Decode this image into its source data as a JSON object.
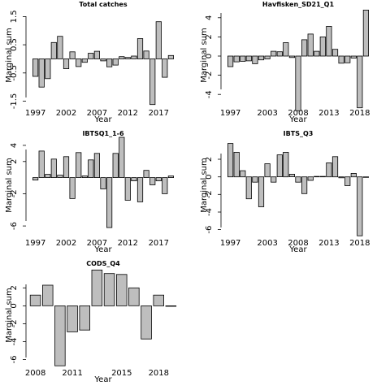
{
  "figure": {
    "background": "#ffffff",
    "bar_fill": "#bebebe",
    "bar_stroke": "#000000"
  },
  "chart_data": [
    {
      "type": "bar",
      "title": "Total catches",
      "xlabel": "Year",
      "ylabel": "Marginal sum",
      "ylim": [
        -1.6,
        1.8
      ],
      "yticks": [
        -1.5,
        -0.5,
        0.5,
        1.5
      ],
      "ytick_labels": [
        "-1.5",
        "-0.5",
        "0.5",
        "1.5"
      ],
      "xlim": [
        1996,
        2020
      ],
      "xticks": [
        1997,
        2002,
        2007,
        2012,
        2017
      ],
      "x": [
        1997,
        1998,
        1999,
        2000,
        2001,
        2002,
        2003,
        2004,
        2005,
        2006,
        2007,
        2008,
        2009,
        2010,
        2011,
        2012,
        2013,
        2014,
        2015,
        2016,
        2017,
        2018,
        2019
      ],
      "values": [
        -0.62,
        -1.0,
        -0.7,
        0.58,
        0.8,
        -0.35,
        0.25,
        -0.27,
        -0.12,
        0.2,
        0.27,
        -0.07,
        -0.28,
        -0.22,
        0.08,
        0.05,
        0.1,
        0.72,
        0.28,
        -1.62,
        1.32,
        -0.65,
        0.12
      ]
    },
    {
      "type": "bar",
      "title": "Havfisken_SD21_Q1",
      "xlabel": "Year",
      "ylabel": "Marginal sum",
      "ylim": [
        -5,
        5
      ],
      "yticks": [
        -4,
        -2,
        0,
        2,
        4
      ],
      "ytick_labels": [
        "-4",
        "-2",
        "0",
        "2",
        "4"
      ],
      "xlim": [
        1996,
        2020
      ],
      "xticks": [
        1997,
        2003,
        2008,
        2013,
        2018
      ],
      "x": [
        1997,
        1998,
        1999,
        2000,
        2001,
        2002,
        2003,
        2004,
        2005,
        2006,
        2007,
        2008,
        2009,
        2010,
        2011,
        2012,
        2013,
        2014,
        2015,
        2016,
        2017,
        2018,
        2019
      ],
      "values": [
        -1.1,
        -0.6,
        -0.55,
        -0.5,
        -0.8,
        -0.4,
        -0.3,
        0.5,
        0.45,
        1.4,
        -0.15,
        -5.7,
        1.7,
        2.3,
        0.5,
        2.0,
        3.1,
        0.7,
        -0.75,
        -0.7,
        -0.2,
        -5.4,
        4.8
      ]
    },
    {
      "type": "bar",
      "title": "IBTSQ1_1-6",
      "xlabel": "Year",
      "ylabel": "Marginal sum",
      "ylim": [
        -7,
        5
      ],
      "yticks": [
        -6,
        -2,
        2,
        4
      ],
      "ytick_labels": [
        "-6",
        "-2",
        "2",
        "4"
      ],
      "xlim": [
        1996,
        2020
      ],
      "xticks": [
        1997,
        2002,
        2007,
        2012,
        2017
      ],
      "x": [
        1997,
        1998,
        1999,
        2000,
        2001,
        2002,
        2003,
        2004,
        2005,
        2006,
        2007,
        2008,
        2009,
        2010,
        2011,
        2012,
        2013,
        2014,
        2015,
        2016,
        2017,
        2018,
        2019
      ],
      "values": [
        -0.3,
        3.3,
        0.4,
        2.3,
        0.3,
        2.6,
        -2.6,
        3.1,
        0.2,
        2.2,
        3.0,
        -1.4,
        -6.2,
        3.0,
        5.0,
        -2.8,
        -0.4,
        -3.0,
        0.9,
        -0.9,
        -0.4,
        -2.0,
        0.2
      ]
    },
    {
      "type": "bar",
      "title": "IBTS_Q3",
      "xlabel": "Year",
      "ylabel": "Marginal sum",
      "ylim": [
        -6.5,
        4.5
      ],
      "yticks": [
        -6,
        -4,
        -2,
        0,
        2
      ],
      "ytick_labels": [
        "-6",
        "-4",
        "-2",
        "0",
        "2"
      ],
      "xlim": [
        1996,
        2020
      ],
      "xticks": [
        1997,
        2003,
        2008,
        2013,
        2018
      ],
      "x": [
        1997,
        1998,
        1999,
        2000,
        2001,
        2002,
        2003,
        2004,
        2005,
        2006,
        2007,
        2008,
        2009,
        2010,
        2011,
        2012,
        2013,
        2014,
        2015,
        2016,
        2017,
        2018,
        2019
      ],
      "values": [
        3.8,
        2.8,
        0.7,
        -2.5,
        -0.6,
        -3.4,
        1.5,
        -0.6,
        2.5,
        2.8,
        0.3,
        -0.6,
        -1.9,
        -0.4,
        0.05,
        0.05,
        1.6,
        2.3,
        -0.1,
        -1.0,
        0.4,
        -6.7,
        0
      ]
    },
    {
      "type": "bar",
      "title": "CODS_Q4",
      "xlabel": "Year",
      "ylabel": "Marginal sum",
      "ylim": [
        -6.5,
        4.3
      ],
      "yticks": [
        -6,
        -4,
        -2,
        0,
        2
      ],
      "ytick_labels": [
        "-6",
        "-4",
        "-2",
        "0",
        "2"
      ],
      "xlim": [
        2007.5,
        2019.5
      ],
      "xticks": [
        2008,
        2011,
        2015,
        2018
      ],
      "x": [
        2008,
        2009,
        2010,
        2011,
        2012,
        2013,
        2014,
        2015,
        2016,
        2017,
        2018,
        2019
      ],
      "values": [
        1.2,
        2.3,
        -6.7,
        -2.9,
        -2.7,
        4.0,
        3.6,
        3.5,
        2.0,
        -3.7,
        1.2,
        0
      ]
    }
  ]
}
